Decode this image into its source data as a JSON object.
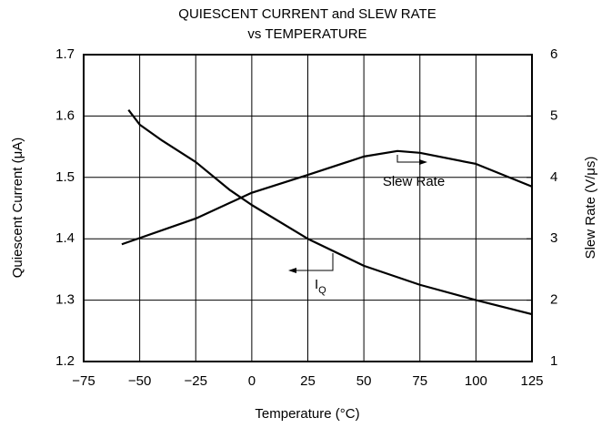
{
  "chart_data": {
    "type": "line",
    "title": [
      "QUIESCENT CURRENT and SLEW RATE",
      "vs TEMPERATURE"
    ],
    "x_label": "Temperature (°C)",
    "y_label": "Quiescent Current (μA)",
    "y2_label": "Slew Rate (V/μs)",
    "xlim": [
      -75,
      125
    ],
    "xticks": [
      {
        "value": -75,
        "label": "−75"
      },
      {
        "value": -50,
        "label": "−50"
      },
      {
        "value": -25,
        "label": "−25"
      },
      0,
      25,
      50,
      75,
      100,
      125
    ],
    "ylim": [
      1.2,
      1.7
    ],
    "yticks": [
      1.2,
      1.3,
      1.4,
      1.5,
      1.6,
      1.7
    ],
    "y2lim": [
      1,
      6
    ],
    "y2ticks": [
      1,
      2,
      3,
      4,
      5,
      6
    ],
    "grid": true,
    "series": [
      {
        "color": "#000000",
        "x": [
          -55,
          -50,
          -40,
          -25,
          -10,
          0,
          25,
          50,
          75,
          100,
          125
        ],
        "values": [
          1.61,
          1.586,
          1.56,
          1.525,
          1.48,
          1.455,
          1.4,
          1.356,
          1.325,
          1.3,
          1.277
        ]
      },
      {
        "color": "#000000",
        "axis": "y2",
        "x": [
          -58,
          -25,
          0,
          25,
          50,
          65,
          75,
          100,
          125
        ],
        "values": [
          2.91,
          3.33,
          3.75,
          4.04,
          4.34,
          4.43,
          4.4,
          4.22,
          3.85
        ]
      }
    ],
    "annotations": [
      {
        "text": "Slew Rate"
      },
      {
        "text": "I",
        "sub": "Q"
      }
    ]
  }
}
